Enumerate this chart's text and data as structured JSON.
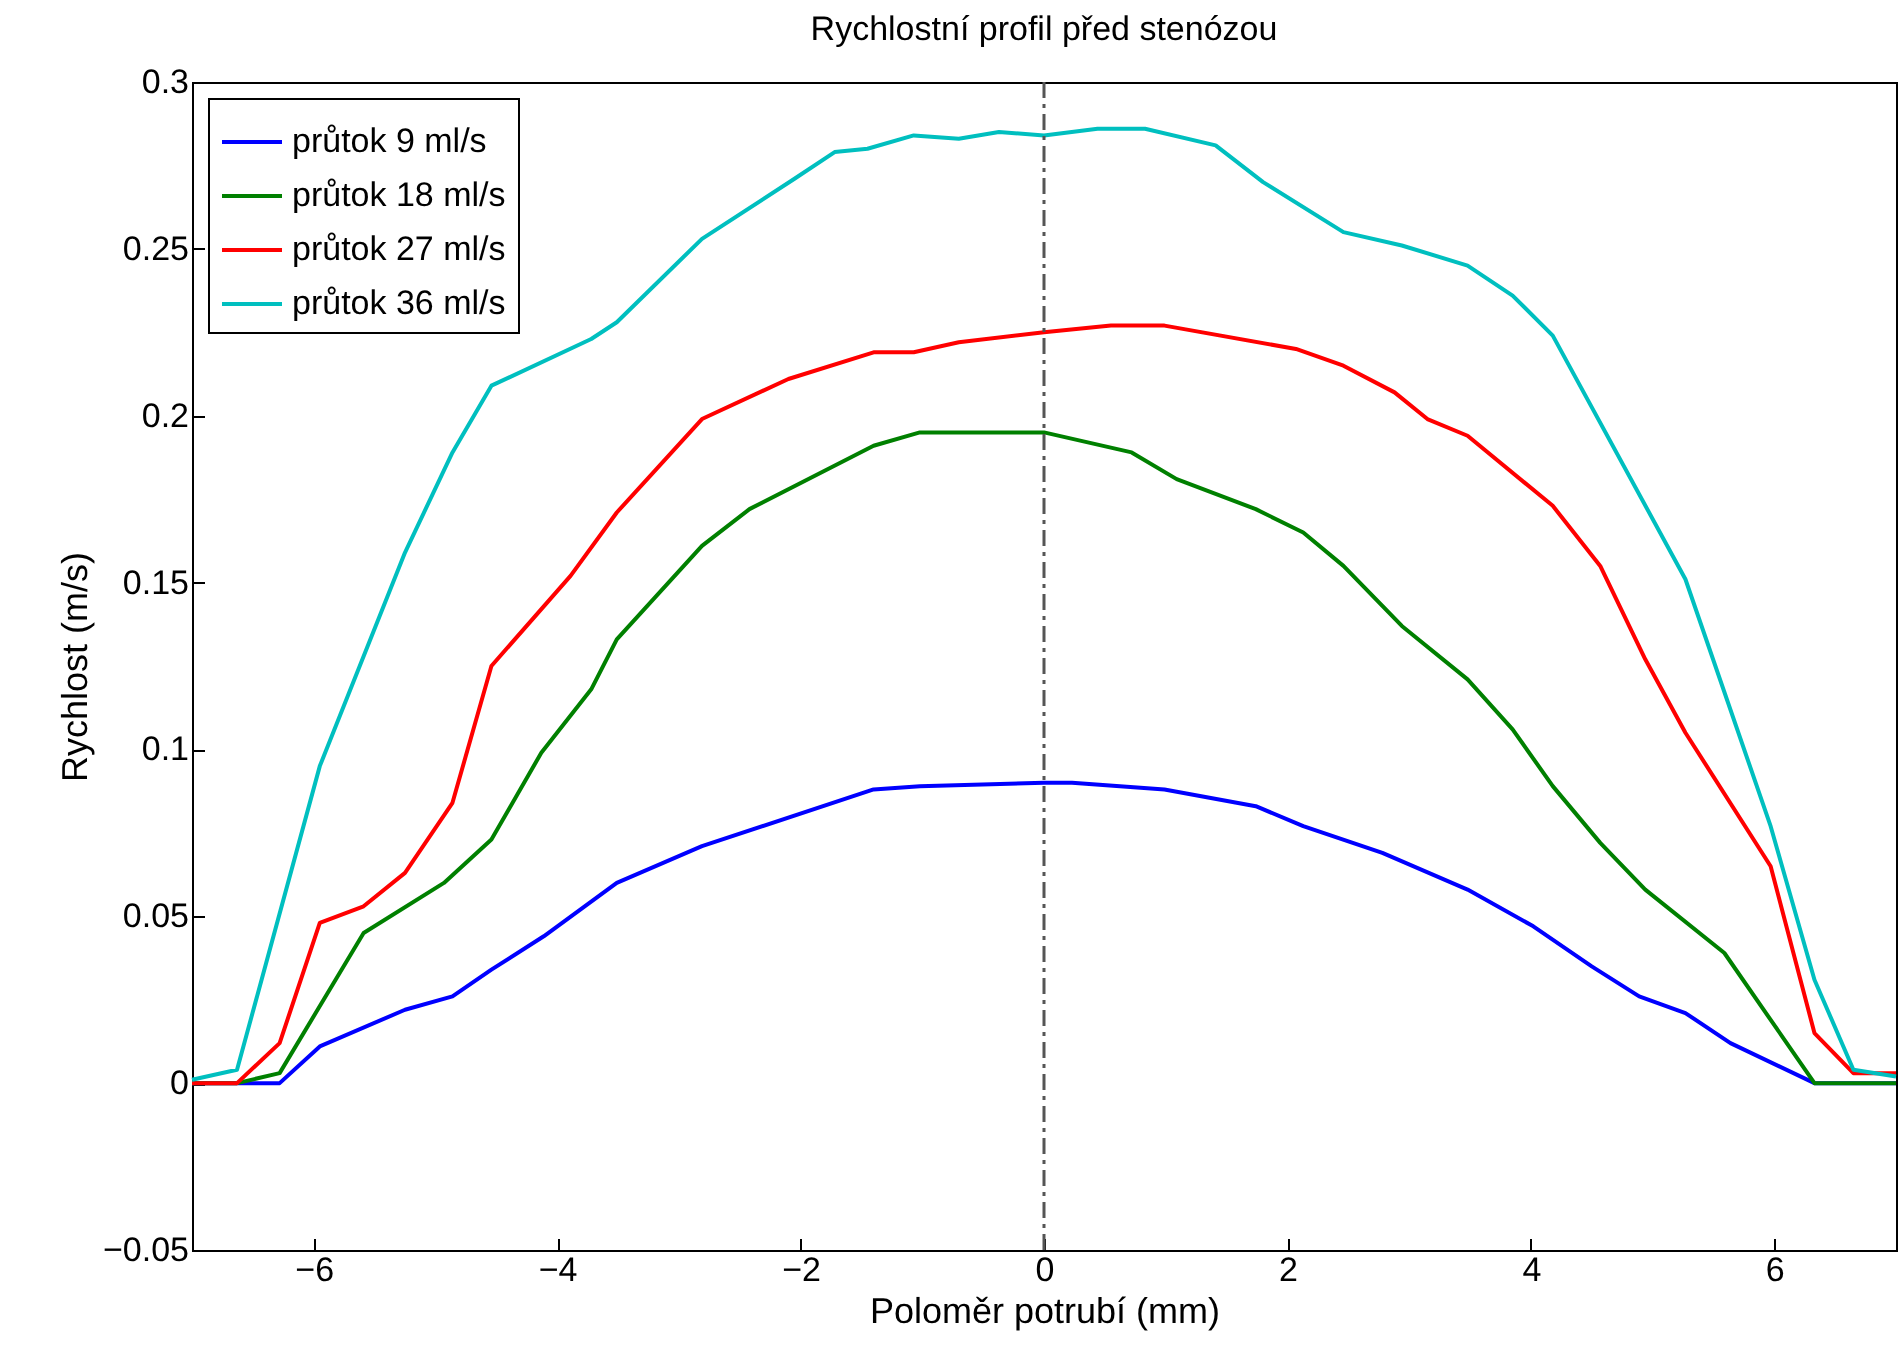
{
  "chart_data": {
    "type": "line",
    "title": "Rychlostní profil před stenózou",
    "xlabel": "Poloměr potrubí (mm)",
    "ylabel": "Rychlost (m/s)",
    "xlim": [
      -7,
      7
    ],
    "ylim": [
      -0.05,
      0.3
    ],
    "xticks": [
      -6,
      -4,
      -2,
      0,
      2,
      4,
      6
    ],
    "yticks": [
      -0.05,
      0,
      0.05,
      0.1,
      0.15,
      0.2,
      0.25,
      0.3
    ],
    "grid": false,
    "legend": "top left",
    "line_style": "solid",
    "marker": "none",
    "ref_lines": [
      {
        "axis": "x",
        "value": 0,
        "label": null,
        "color": "#555555",
        "line_style": "dashdot"
      }
    ],
    "series": [
      {
        "name": "průtok 9 ml/s",
        "color": "#0000ff",
        "x": [
          -7,
          -6.28,
          -5.95,
          -5.25,
          -4.86,
          -4.54,
          -4.11,
          -3.51,
          -2.81,
          -1.4,
          -1.02,
          0,
          0.23,
          0.99,
          1.74,
          2.13,
          2.78,
          3.48,
          4.02,
          4.5,
          4.89,
          5.27,
          5.64,
          6.33,
          7
        ],
        "values": [
          0,
          0,
          0.011,
          0.022,
          0.026,
          0.034,
          0.044,
          0.06,
          0.071,
          0.088,
          0.089,
          0.09,
          0.09,
          0.088,
          0.083,
          0.077,
          0.069,
          0.058,
          0.047,
          0.035,
          0.026,
          0.021,
          0.012,
          0,
          0
        ]
      },
      {
        "name": "průtok 18 ml/s",
        "color": "#008000",
        "x": [
          -7,
          -6.63,
          -6.28,
          -5.59,
          -4.93,
          -4.54,
          -4.13,
          -3.72,
          -3.51,
          -2.81,
          -2.42,
          -1.4,
          -1.02,
          0,
          0.72,
          1.09,
          1.74,
          2.13,
          2.46,
          2.94,
          3.48,
          3.85,
          4.18,
          4.57,
          4.94,
          5.59,
          6.33,
          7
        ],
        "values": [
          0,
          0,
          0.003,
          0.045,
          0.06,
          0.073,
          0.099,
          0.118,
          0.133,
          0.161,
          0.172,
          0.191,
          0.195,
          0.195,
          0.189,
          0.181,
          0.172,
          0.165,
          0.155,
          0.137,
          0.121,
          0.106,
          0.089,
          0.072,
          0.058,
          0.039,
          0,
          0
        ]
      },
      {
        "name": "průtok 27 ml/s",
        "color": "#ff0000",
        "x": [
          -7,
          -6.63,
          -6.28,
          -5.95,
          -5.59,
          -5.25,
          -4.86,
          -4.54,
          -3.89,
          -3.51,
          -2.81,
          -2.1,
          -1.4,
          -1.07,
          -0.7,
          0,
          0.55,
          0.99,
          2.07,
          2.46,
          2.88,
          3.15,
          3.48,
          4.18,
          4.57,
          4.94,
          5.27,
          5.97,
          6.33,
          6.65,
          7
        ],
        "values": [
          0,
          0,
          0.012,
          0.048,
          0.053,
          0.063,
          0.084,
          0.125,
          0.152,
          0.171,
          0.199,
          0.211,
          0.219,
          0.219,
          0.222,
          0.225,
          0.227,
          0.227,
          0.22,
          0.215,
          0.207,
          0.199,
          0.194,
          0.173,
          0.155,
          0.127,
          0.105,
          0.065,
          0.015,
          0.003,
          0.003
        ]
      },
      {
        "name": "průtok 36 ml/s",
        "color": "#00bfbf",
        "x": [
          -7,
          -6.63,
          -5.95,
          -5.25,
          -4.86,
          -4.54,
          -3.72,
          -3.51,
          -2.81,
          -2.05,
          -1.72,
          -1.45,
          -1.07,
          -0.7,
          -0.37,
          0,
          0.44,
          0.83,
          1.41,
          1.8,
          2.46,
          2.94,
          3.48,
          3.85,
          4.18,
          5.27,
          5.97,
          6.33,
          6.65,
          7
        ],
        "values": [
          0.001,
          0.004,
          0.095,
          0.159,
          0.189,
          0.209,
          0.223,
          0.228,
          0.253,
          0.271,
          0.279,
          0.28,
          0.284,
          0.283,
          0.285,
          0.284,
          0.286,
          0.286,
          0.281,
          0.27,
          0.255,
          0.251,
          0.245,
          0.236,
          0.224,
          0.151,
          0.077,
          0.031,
          0.004,
          0.002
        ]
      }
    ]
  }
}
